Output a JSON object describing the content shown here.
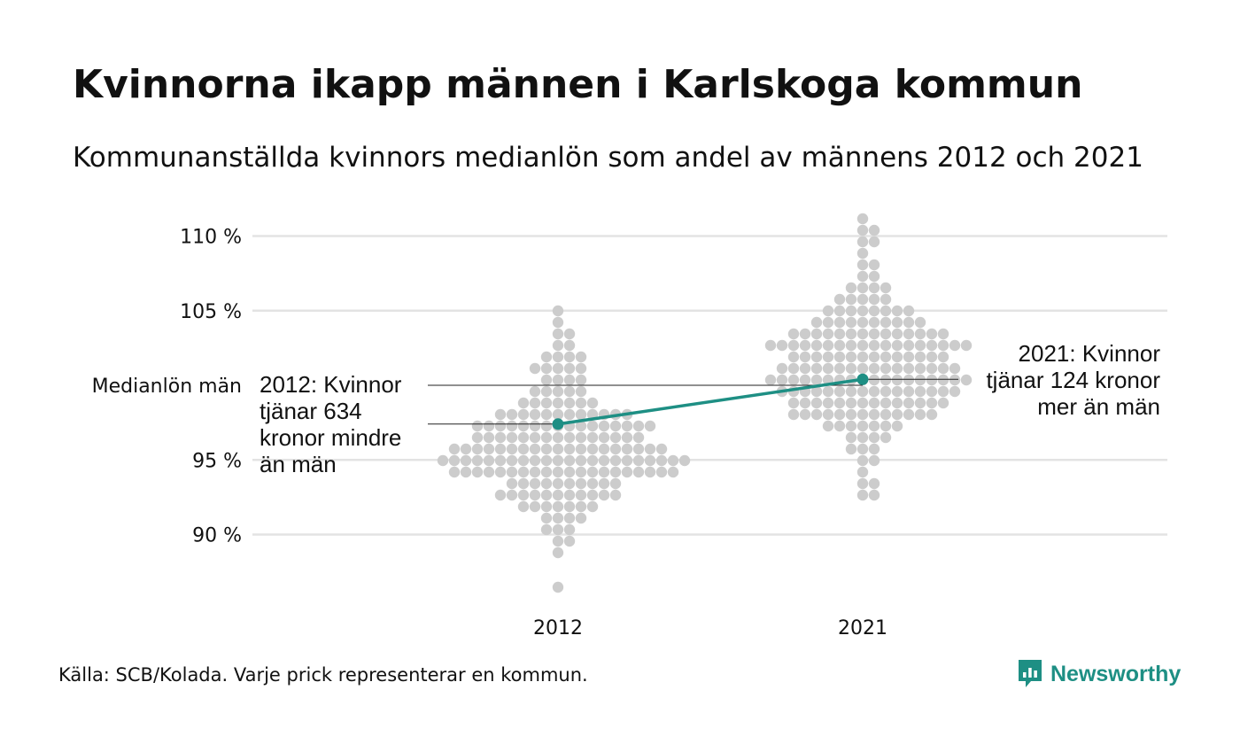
{
  "title": "Kvinnorna ikapp männen i Karlskoga kommun",
  "subtitle": "Kommunanställda kvinnors medianlön som andel av männens 2012 och 2021",
  "source": "Källa: SCB/Kolada. Varje prick representerar en kommun.",
  "logo": {
    "name": "Newsworthy",
    "color": "#1e8f84"
  },
  "chart_data": {
    "type": "scatter",
    "subtype": "beeswarm",
    "categories": [
      "2012",
      "2021"
    ],
    "y_ticks": [
      90,
      95,
      105,
      110
    ],
    "y_tick_labels": [
      "90 %",
      "95 %",
      "105 %",
      "110 %"
    ],
    "reference_line": {
      "value": 100,
      "label": "Medianlön män"
    },
    "ylim": [
      86,
      111.5
    ],
    "grid": true,
    "dot_color": "#cccccc",
    "highlight_color": "#1e8f84",
    "highlight": {
      "name": "Karlskoga",
      "values": [
        97.4,
        100.4
      ]
    },
    "annotations": [
      {
        "category": "2012",
        "text_lines": [
          "2012: Kvinnor",
          "tjänar 634",
          "kronor mindre",
          "än män"
        ]
      },
      {
        "category": "2021",
        "text_lines": [
          "2021: Kvinnor",
          "tjänar 124 kronor",
          "mer än män"
        ]
      }
    ],
    "series": [
      {
        "name": "2012",
        "values": [
          86.5,
          89.0,
          89.2,
          89.5,
          90.3,
          90.6,
          90.8,
          91.0,
          91.3,
          91.7,
          92.0,
          92.3,
          92.5,
          92.6,
          92.8,
          93.0,
          93.2,
          93.4,
          93.6,
          93.8,
          94.0,
          94.1,
          94.3,
          94.5,
          94.7,
          94.9,
          95.0,
          95.1,
          95.3,
          95.5,
          95.7,
          95.9,
          96.0,
          96.2,
          96.4,
          96.6,
          96.8,
          97.0,
          97.2,
          97.4,
          97.6,
          97.8,
          98.0,
          98.2,
          98.4,
          98.6,
          98.8,
          99.0,
          99.3,
          99.6,
          100.0,
          100.4,
          100.8,
          101.2,
          101.6,
          102.0,
          102.4,
          102.8,
          103.2,
          103.6,
          104.4,
          105.2,
          94.2,
          94.6,
          95.2,
          95.6,
          96.1,
          96.5,
          96.9,
          97.1,
          97.5,
          97.9,
          95.0,
          95.4,
          94.4,
          93.9,
          93.3,
          92.9,
          92.1,
          91.5,
          94.8,
          95.8,
          96.3,
          96.7,
          97.3,
          97.7,
          98.1,
          98.5,
          93.7,
          94.0,
          94.3,
          94.6,
          94.9,
          95.2,
          95.5,
          95.8,
          96.1,
          96.4,
          96.7,
          97.0,
          94.1,
          94.5,
          94.9,
          95.3,
          95.7,
          96.2,
          93.5,
          93.1,
          92.7,
          92.2,
          98.3,
          98.9,
          99.4,
          100.2,
          101.0,
          101.8,
          96.0,
          95.6,
          95.1,
          94.7,
          94.2,
          93.8,
          93.4,
          93.0,
          92.4,
          91.9,
          97.2,
          97.8,
          98.4,
          99.1,
          99.8,
          100.6,
          95.9,
          95.4,
          94.8,
          94.3,
          96.6,
          97.1,
          97.6,
          98.1,
          92.8,
          92.0,
          91.2,
          90.4,
          99.5,
          100.9,
          101.4,
          102.2,
          96.3,
          96.8,
          95.3,
          94.5,
          93.6,
          93.2,
          97.4,
          98.7,
          94.0,
          95.0,
          96.0,
          97.0,
          94.6,
          95.6,
          96.5,
          93.9,
          94.9,
          95.9,
          96.9,
          98.0,
          92.6,
          93.8,
          94.4,
          95.2,
          96.2,
          97.3
        ],
        "color": "#cccccc"
      },
      {
        "name": "2021",
        "values": [
          92.5,
          93.0,
          93.3,
          93.6,
          94.2,
          94.6,
          95.0,
          95.4,
          95.8,
          96.0,
          96.3,
          96.6,
          96.8,
          97.0,
          97.2,
          97.4,
          97.6,
          97.8,
          98.0,
          98.1,
          98.3,
          98.4,
          98.6,
          98.7,
          98.9,
          99.0,
          99.2,
          99.3,
          99.5,
          99.6,
          99.8,
          99.9,
          100.1,
          100.2,
          100.4,
          100.5,
          100.7,
          100.8,
          101.0,
          101.1,
          101.3,
          101.4,
          101.6,
          101.7,
          101.9,
          102.0,
          102.2,
          102.3,
          102.5,
          102.6,
          102.8,
          102.9,
          103.1,
          103.2,
          103.4,
          103.5,
          103.7,
          103.9,
          104.1,
          104.3,
          104.5,
          104.7,
          104.9,
          105.1,
          105.3,
          105.5,
          105.8,
          106.1,
          106.4,
          106.7,
          107.0,
          107.4,
          107.8,
          108.3,
          108.8,
          109.3,
          109.8,
          110.3,
          110.7,
          111.4,
          98.5,
          99.1,
          99.7,
          100.3,
          100.9,
          101.5,
          102.1,
          102.7,
          103.3,
          98.2,
          98.8,
          99.4,
          100.0,
          100.6,
          101.2,
          101.8,
          102.4,
          103.0,
          103.6,
          104.2,
          97.9,
          98.4,
          99.0,
          99.6,
          100.2,
          100.8,
          101.4,
          102.0,
          102.6,
          103.2,
          103.8,
          104.4,
          105.0,
          97.5,
          98.1,
          98.7,
          99.3,
          99.9,
          100.5,
          101.1,
          101.7,
          102.3,
          102.9,
          103.5,
          104.1,
          104.7,
          105.3,
          105.9,
          106.5,
          97.1,
          97.7,
          98.3,
          98.9,
          99.5,
          100.1,
          100.7,
          101.3,
          101.9,
          102.5,
          103.1,
          103.7,
          104.3,
          104.9,
          105.6,
          106.2,
          96.7,
          97.3,
          97.9,
          98.5,
          99.1,
          99.7,
          100.3,
          100.9,
          101.5,
          102.1,
          102.7,
          103.3,
          103.9,
          104.5,
          98.6,
          99.2,
          99.8,
          100.4,
          101.0,
          101.6,
          102.2,
          102.8,
          103.4,
          99.4,
          100.0,
          100.6,
          101.2,
          101.8,
          102.4,
          103.0,
          102.7,
          102.6,
          100.4,
          100.4,
          99.0,
          98.2
        ],
        "color": "#cccccc"
      }
    ]
  }
}
